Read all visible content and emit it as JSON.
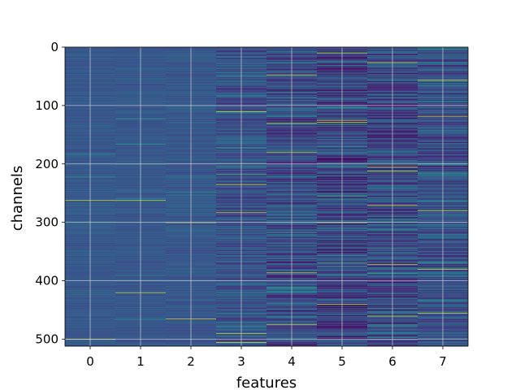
{
  "chart_data": {
    "type": "heatmap",
    "title": "",
    "xlabel": "features",
    "ylabel": "channels",
    "x_categories": [
      "0",
      "1",
      "2",
      "3",
      "4",
      "5",
      "6",
      "7"
    ],
    "y_ticks": [
      0,
      100,
      200,
      300,
      400,
      500
    ],
    "y_range": [
      0,
      512
    ],
    "y_inverted": true,
    "grid": true,
    "colormap": "viridis",
    "columns": [
      {
        "feature": "0",
        "mean": 0.28,
        "spread": 0.05,
        "bright_rows": [
          262,
          500
        ]
      },
      {
        "feature": "1",
        "mean": 0.28,
        "spread": 0.05,
        "bright_rows": [
          262,
          420
        ]
      },
      {
        "feature": "2",
        "mean": 0.28,
        "spread": 0.06,
        "bright_rows": [
          300,
          465
        ]
      },
      {
        "feature": "3",
        "mean": 0.26,
        "spread": 0.15,
        "bright_rows": [
          283,
          490,
          505,
          110,
          235
        ]
      },
      {
        "feature": "4",
        "mean": 0.24,
        "spread": 0.18,
        "bright_rows": [
          47,
          386,
          475,
          130,
          180
        ]
      },
      {
        "feature": "5",
        "mean": 0.22,
        "spread": 0.2,
        "bright_rows": [
          10,
          125,
          128,
          300,
          440
        ]
      },
      {
        "feature": "6",
        "mean": 0.24,
        "spread": 0.2,
        "bright_rows": [
          26,
          205,
          212,
          270,
          372,
          460
        ]
      },
      {
        "feature": "7",
        "mean": 0.26,
        "spread": 0.18,
        "bright_rows": [
          56,
          118,
          280,
          380,
          455
        ]
      }
    ]
  },
  "colors": {
    "background": "#ffffff",
    "grid": "#d9d9d9",
    "axis": "#000000"
  }
}
